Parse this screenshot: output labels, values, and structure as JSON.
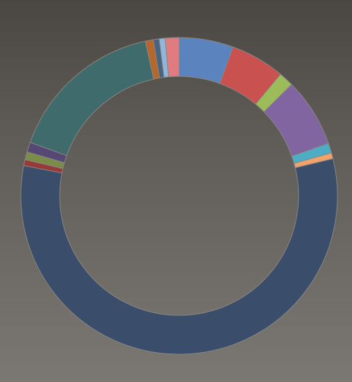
{
  "chart_data": {
    "type": "pie",
    "style": "donut",
    "legend": "none",
    "title": "",
    "background_gradient": [
      "#4a4742",
      "#7b7772"
    ],
    "slice_border_color": "#8a8681",
    "slices": [
      {
        "value": 5.5,
        "color": "#5b84be"
      },
      {
        "value": 5.5,
        "color": "#c95150"
      },
      {
        "value": 1.5,
        "color": "#9cbb59"
      },
      {
        "value": 7.0,
        "color": "#8065a0"
      },
      {
        "value": 1.0,
        "color": "#4cadc4"
      },
      {
        "value": 0.6,
        "color": "#f0a36a"
      },
      {
        "value": 56.5,
        "color": "#3a4e6b"
      },
      {
        "value": 0.6,
        "color": "#983a3a"
      },
      {
        "value": 0.8,
        "color": "#798c48"
      },
      {
        "value": 1.0,
        "color": "#574775"
      },
      {
        "value": 16.0,
        "color": "#3f6b6c"
      },
      {
        "value": 0.8,
        "color": "#b8672c"
      },
      {
        "value": 0.6,
        "color": "#4a6480"
      },
      {
        "value": 0.6,
        "color": "#8fb7de"
      },
      {
        "value": 1.4,
        "color": "#e07b80"
      }
    ]
  }
}
